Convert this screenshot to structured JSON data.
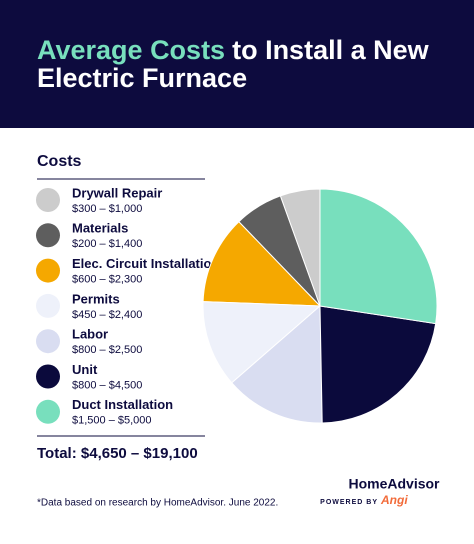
{
  "chart_data": {
    "type": "pie",
    "title_parts": [
      "Average Costs",
      "to Install a New",
      "Electric Furnace"
    ],
    "legend_title": "Costs",
    "categories": [
      "Drywall Repair",
      "Materials",
      "Elec. Circuit Installation",
      "Permits",
      "Labor",
      "Unit",
      "Duct Installation"
    ],
    "ranges": [
      "$300 – $1,000",
      "$200 – $1,400",
      "$600 – $2,300",
      "$450 – $2,400",
      "$800 – $2,500",
      "$800 – $4,500",
      "$1,500 – $5,000"
    ],
    "values": [
      5.5,
      6.7,
      12.2,
      12.0,
      13.9,
      22.3,
      27.4
    ],
    "colors": [
      "#cccccc",
      "#5e5e5e",
      "#f5a800",
      "#eef1fa",
      "#d9ddf1",
      "#0b0a3c",
      "#78dfbd"
    ],
    "total": "Total: $4,650 – $19,100",
    "footnote": "*Data based on research by HomeAdvisor. June 2022.",
    "brand": "HomeAdvisor",
    "powered_by": "POWERED BY",
    "powered_brand": "Angi"
  }
}
